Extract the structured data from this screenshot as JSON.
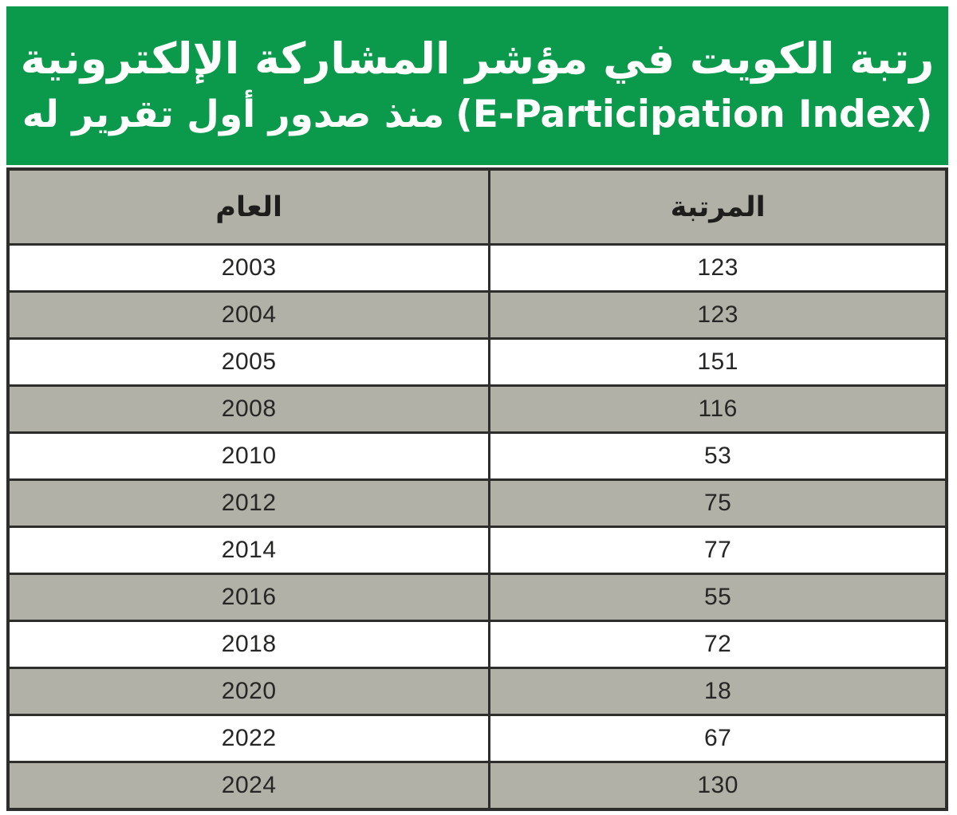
{
  "title": {
    "line1": "رتبة الكويت في مؤشر المشاركة الإلكترونية",
    "line2_arabic": "منذ صدور أول تقرير له",
    "line2_latin": "(E-Participation Index)"
  },
  "table": {
    "header": {
      "year": "العام",
      "rank": "المرتبة"
    },
    "rows": [
      {
        "year": "2003",
        "rank": "123"
      },
      {
        "year": "2004",
        "rank": "123"
      },
      {
        "year": "2005",
        "rank": "151"
      },
      {
        "year": "2008",
        "rank": "116"
      },
      {
        "year": "2010",
        "rank": "53"
      },
      {
        "year": "2012",
        "rank": "75"
      },
      {
        "year": "2014",
        "rank": "77"
      },
      {
        "year": "2016",
        "rank": "55"
      },
      {
        "year": "2018",
        "rank": "72"
      },
      {
        "year": "2020",
        "rank": "18"
      },
      {
        "year": "2022",
        "rank": "67"
      },
      {
        "year": "2024",
        "rank": "130"
      }
    ]
  },
  "colors": {
    "title_background": "#0b9a4c",
    "title_text": "#ffffff",
    "header_row_background": "#b2b1a7",
    "alternate_row_background": "#b2b1a7",
    "row_background": "#ffffff",
    "table_border": "#2d2d2b",
    "cell_text": "#262624"
  },
  "chart_data": {
    "type": "table",
    "title": "رتبة الكويت في مؤشر المشاركة الإلكترونية (E-Participation Index) منذ صدور أول تقرير له",
    "columns": [
      "العام",
      "المرتبة"
    ],
    "categories": [
      "2003",
      "2004",
      "2005",
      "2008",
      "2010",
      "2012",
      "2014",
      "2016",
      "2018",
      "2020",
      "2022",
      "2024"
    ],
    "values": [
      123,
      123,
      151,
      116,
      53,
      75,
      77,
      55,
      72,
      18,
      67,
      130
    ]
  }
}
